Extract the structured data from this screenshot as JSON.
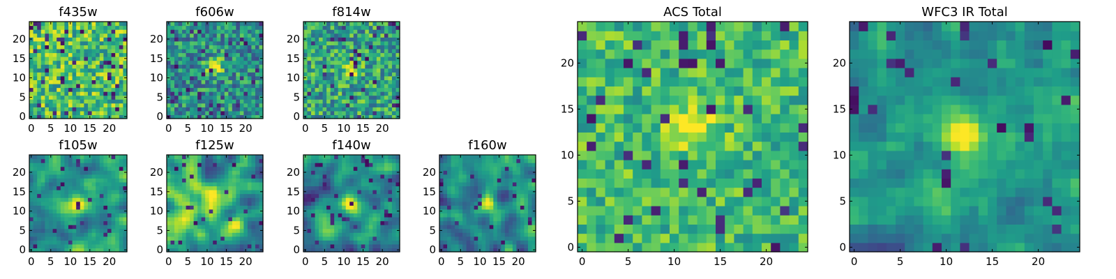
{
  "chart_data": [
    {
      "type": "heatmap",
      "title": "f435w",
      "xlim": [
        0,
        24
      ],
      "ylim": [
        0,
        24
      ],
      "xticks": [
        0,
        5,
        10,
        15,
        20
      ],
      "yticks": [
        0,
        5,
        10,
        15,
        20
      ],
      "grid_size": [
        24,
        24
      ],
      "feature": "noise",
      "colormap": "viridis"
    },
    {
      "type": "heatmap",
      "title": "f606w",
      "xlim": [
        0,
        24
      ],
      "ylim": [
        0,
        24
      ],
      "xticks": [
        0,
        5,
        10,
        15,
        20
      ],
      "yticks": [
        0,
        5,
        10,
        15,
        20
      ],
      "grid_size": [
        24,
        24
      ],
      "feature": "compact source near (12, 12)",
      "colormap": "viridis"
    },
    {
      "type": "heatmap",
      "title": "f814w",
      "xlim": [
        0,
        24
      ],
      "ylim": [
        0,
        24
      ],
      "xticks": [
        0,
        5,
        10,
        15,
        20
      ],
      "yticks": [
        0,
        5,
        10,
        15,
        20
      ],
      "grid_size": [
        24,
        24
      ],
      "feature": "compact source near (12, 12)",
      "colormap": "viridis"
    },
    {
      "type": "heatmap",
      "title": "f105w",
      "xlim": [
        0,
        24
      ],
      "ylim": [
        0,
        24
      ],
      "xticks": [
        0,
        5,
        10,
        15,
        20
      ],
      "yticks": [
        0,
        5,
        10,
        15,
        20
      ],
      "grid_size": [
        24,
        24
      ],
      "feature": "smooth, source near (12, 12)",
      "colormap": "viridis"
    },
    {
      "type": "heatmap",
      "title": "f125w",
      "xlim": [
        0,
        24
      ],
      "ylim": [
        0,
        24
      ],
      "xticks": [
        0,
        5,
        10,
        15,
        20
      ],
      "yticks": [
        0,
        5,
        10,
        15,
        20
      ],
      "grid_size": [
        24,
        24
      ],
      "feature": "smooth, source near (12, 12)",
      "colormap": "viridis"
    },
    {
      "type": "heatmap",
      "title": "f140w",
      "xlim": [
        0,
        24
      ],
      "ylim": [
        0,
        24
      ],
      "xticks": [
        0,
        5,
        10,
        15,
        20
      ],
      "yticks": [
        0,
        5,
        10,
        15,
        20
      ],
      "grid_size": [
        24,
        24
      ],
      "feature": "smooth, source near (11, 12)",
      "colormap": "viridis"
    },
    {
      "type": "heatmap",
      "title": "f160w",
      "xlim": [
        0,
        24
      ],
      "ylim": [
        0,
        24
      ],
      "xticks": [
        0,
        5,
        10,
        15,
        20
      ],
      "yticks": [
        0,
        5,
        10,
        15,
        20
      ],
      "grid_size": [
        24,
        24
      ],
      "feature": "smooth, source near (12, 12)",
      "colormap": "viridis"
    },
    {
      "type": "heatmap",
      "title": "ACS Total",
      "xlim": [
        0,
        24
      ],
      "ylim": [
        0,
        24
      ],
      "xticks": [
        0,
        5,
        10,
        15,
        20
      ],
      "yticks": [
        0,
        5,
        10,
        15,
        20
      ],
      "grid_size": [
        24,
        24
      ],
      "feature": "bright source near (12, 13)",
      "colormap": "viridis"
    },
    {
      "type": "heatmap",
      "title": "WFC3 IR Total",
      "xlim": [
        0,
        24
      ],
      "ylim": [
        0,
        24
      ],
      "xticks": [
        0,
        5,
        10,
        15,
        20
      ],
      "yticks": [
        0,
        5,
        10,
        15,
        20
      ],
      "grid_size": [
        24,
        24
      ],
      "feature": "bright source near (12, 12)",
      "colormap": "viridis"
    }
  ]
}
